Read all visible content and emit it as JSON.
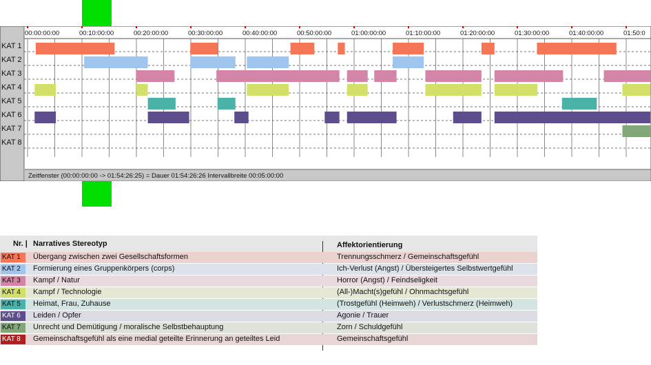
{
  "timeline": {
    "time_labels": [
      "00:00:00:00",
      "00:10:00:00",
      "00:20:00:00",
      "00:30:00:00",
      "00:40:00:00",
      "00:50:00:00",
      "01:00:00:00",
      "01:10:00:00",
      "01:20:00:00",
      "01:30:00:00",
      "01:40:00:00",
      "01:50:0"
    ],
    "row_labels": [
      "KAT 1",
      "KAT 2",
      "KAT 3",
      "KAT 4",
      "KAT 5",
      "KAT 6",
      "KAT 7",
      "KAT 8"
    ],
    "status": "Zeitfenster (00:00:00:00 -> 01:54:26:25) = Dauer 01:54:26:26     Intervallbreite 00:05:00:00",
    "total_duration_min": 114.44,
    "interval_min": 5,
    "colors": {
      "kat1": "#f57657",
      "kat2": "#9fc5ee",
      "kat3": "#d484a6",
      "kat4": "#d2e06a",
      "kat5": "#4bb2aa",
      "kat6": "#5d4d8d",
      "kat7": "#83a679",
      "kat8": "#b01e1e"
    },
    "segments": [
      {
        "row": 0,
        "start": 1.5,
        "end": 16.0
      },
      {
        "row": 0,
        "start": 29.9,
        "end": 35.0
      },
      {
        "row": 0,
        "start": 48.3,
        "end": 52.7
      },
      {
        "row": 0,
        "start": 57.0,
        "end": 58.3
      },
      {
        "row": 0,
        "start": 67.1,
        "end": 72.8
      },
      {
        "row": 0,
        "start": 83.4,
        "end": 85.8
      },
      {
        "row": 0,
        "start": 93.6,
        "end": 108.2
      },
      {
        "row": 1,
        "start": 10.4,
        "end": 22.1
      },
      {
        "row": 1,
        "start": 29.9,
        "end": 38.2
      },
      {
        "row": 1,
        "start": 40.3,
        "end": 48.0
      },
      {
        "row": 1,
        "start": 67.1,
        "end": 72.8
      },
      {
        "row": 2,
        "start": 20.0,
        "end": 27.0
      },
      {
        "row": 2,
        "start": 34.7,
        "end": 57.3
      },
      {
        "row": 2,
        "start": 58.7,
        "end": 62.5
      },
      {
        "row": 2,
        "start": 63.7,
        "end": 67.8
      },
      {
        "row": 2,
        "start": 73.1,
        "end": 83.4
      },
      {
        "row": 2,
        "start": 85.8,
        "end": 98.4
      },
      {
        "row": 2,
        "start": 105.9,
        "end": 114.44
      },
      {
        "row": 3,
        "start": 1.3,
        "end": 5.2
      },
      {
        "row": 3,
        "start": 20.0,
        "end": 22.1
      },
      {
        "row": 3,
        "start": 40.3,
        "end": 48.0
      },
      {
        "row": 3,
        "start": 58.7,
        "end": 62.5
      },
      {
        "row": 3,
        "start": 73.1,
        "end": 83.4
      },
      {
        "row": 3,
        "start": 85.8,
        "end": 93.7
      },
      {
        "row": 3,
        "start": 109.3,
        "end": 114.44
      },
      {
        "row": 4,
        "start": 22.1,
        "end": 27.2
      },
      {
        "row": 4,
        "start": 34.9,
        "end": 38.2
      },
      {
        "row": 4,
        "start": 98.2,
        "end": 104.6
      },
      {
        "row": 5,
        "start": 1.3,
        "end": 5.2
      },
      {
        "row": 5,
        "start": 22.1,
        "end": 29.7
      },
      {
        "row": 5,
        "start": 38.0,
        "end": 40.6
      },
      {
        "row": 5,
        "start": 54.6,
        "end": 57.3
      },
      {
        "row": 5,
        "start": 58.7,
        "end": 67.8
      },
      {
        "row": 5,
        "start": 78.2,
        "end": 83.4
      },
      {
        "row": 5,
        "start": 85.8,
        "end": 114.44
      },
      {
        "row": 6,
        "start": 109.3,
        "end": 114.44
      }
    ]
  },
  "legend": {
    "header_nr": "Nr. |",
    "header_stereotyp": "Narratives Stereotyp",
    "header_affekt": "Affektorientierung",
    "rows": [
      {
        "kat": "KAT 1",
        "stereotyp": "Übergang zwischen zwei Gesellschaftsformen",
        "affekt": "Trennungsschmerz / Gemeinschaftsgefühl",
        "color": "#f57657",
        "text_color": "#111111",
        "bg": "#ebd2cf"
      },
      {
        "kat": "KAT 2",
        "stereotyp": "Formierung eines Gruppenkörpers (corps)",
        "affekt": "Ich-Verlust (Angst) / Übersteigertes Selbstwertgefühl",
        "color": "#9fc5ee",
        "text_color": "#111111",
        "bg": "#dde2ea"
      },
      {
        "kat": "KAT 3",
        "stereotyp": "Kampf / Natur",
        "affekt": "Horror (Angst) / Feindseligkeit",
        "color": "#d484a6",
        "text_color": "#111111",
        "bg": "#e9dadf"
      },
      {
        "kat": "KAT 4",
        "stereotyp": "Kampf / Technologie",
        "affekt": "(All-)Macht(s)gefühl / Ohnmachtsgefühl",
        "color": "#d2e06a",
        "text_color": "#111111",
        "bg": "#e6e8d4"
      },
      {
        "kat": "KAT 5",
        "stereotyp": "Heimat, Frau, Zuhause",
        "affekt": "(Trostgefühl (Heimweh) / Verlustschmerz (Heimweh)",
        "color": "#4bb2aa",
        "text_color": "#111111",
        "bg": "#d4e4e2"
      },
      {
        "kat": "KAT 6",
        "stereotyp": "Leiden / Opfer",
        "affekt": "Agonie / Trauer",
        "color": "#5d4d8d",
        "text_color": "#ffffff",
        "bg": "#dcdae2"
      },
      {
        "kat": "KAT 7",
        "stereotyp": "Unrecht und Demütigung / moralische Selbstbehauptung",
        "affekt": "Zorn / Schuldgefühl",
        "color": "#83a679",
        "text_color": "#111111",
        "bg": "#dde3da"
      },
      {
        "kat": "KAT 8",
        "stereotyp": "Gemeinschaftsgefühl als eine medial geteilte Erinnerung an geteiltes Leid",
        "affekt": "Gemeinschaftsgefühl",
        "color": "#b01e1e",
        "text_color": "#ffffff",
        "bg": "#e8d6d6"
      }
    ]
  }
}
